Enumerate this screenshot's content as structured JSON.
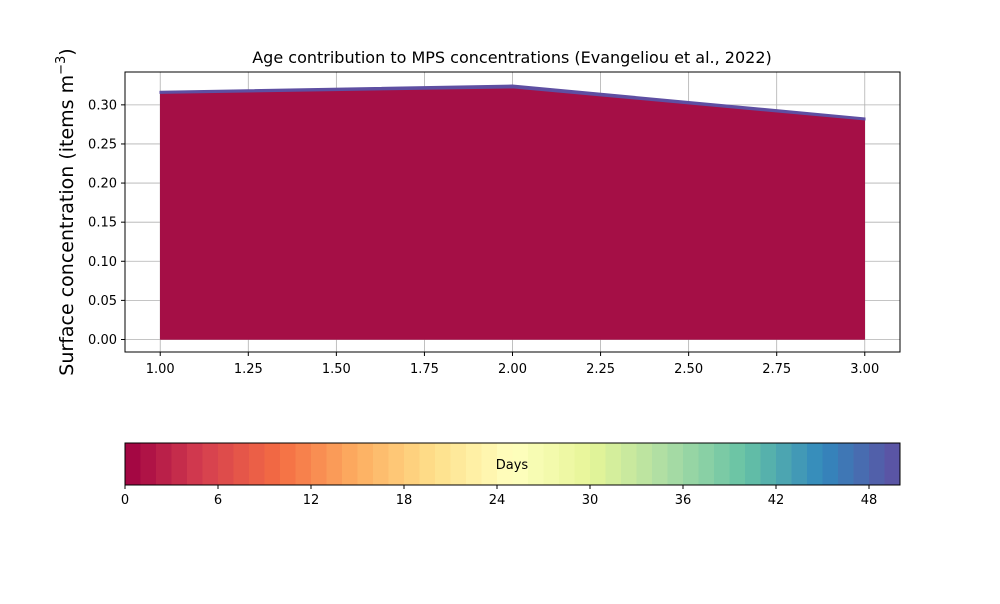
{
  "chart_data": {
    "type": "area",
    "title": "Age contribution to MPS concentrations (Evangeliou et al., 2022)",
    "xlabel": "",
    "ylabel": "Surface concentration (items m",
    "ylabel_sup": "−3",
    "ylabel_close": ")",
    "xlim": [
      0.9,
      3.1
    ],
    "ylim": [
      -0.016,
      0.342
    ],
    "x_ticks": [
      1.0,
      1.25,
      1.5,
      1.75,
      2.0,
      2.25,
      2.5,
      2.75,
      3.0
    ],
    "x_tick_labels": [
      "1.00",
      "1.25",
      "1.50",
      "1.75",
      "2.00",
      "2.25",
      "2.50",
      "2.75",
      "3.00"
    ],
    "y_ticks": [
      0.0,
      0.05,
      0.1,
      0.15,
      0.2,
      0.25,
      0.3
    ],
    "y_tick_labels": [
      "0.00",
      "0.05",
      "0.10",
      "0.15",
      "0.20",
      "0.25",
      "0.30"
    ],
    "grid": true,
    "x": [
      1,
      2,
      3
    ],
    "series": [
      {
        "color": "#a50f46",
        "values": [
          0.315,
          0.322,
          0.281
        ]
      },
      {
        "color": "#5e4fa2",
        "values": [
          0.002,
          0.003,
          0.002
        ]
      }
    ],
    "colorbar": {
      "label": "Days",
      "range": [
        0,
        50
      ],
      "ticks": [
        0,
        6,
        12,
        18,
        24,
        30,
        36,
        42,
        48
      ],
      "tick_labels": [
        "0",
        "6",
        "12",
        "18",
        "24",
        "30",
        "36",
        "42",
        "48"
      ],
      "colormap_stops": [
        "#9e0142",
        "#d53e4f",
        "#f46d43",
        "#fdae61",
        "#fee08b",
        "#ffffbf",
        "#e6f598",
        "#abdda4",
        "#66c2a5",
        "#3288bd",
        "#5e4fa2"
      ]
    }
  }
}
